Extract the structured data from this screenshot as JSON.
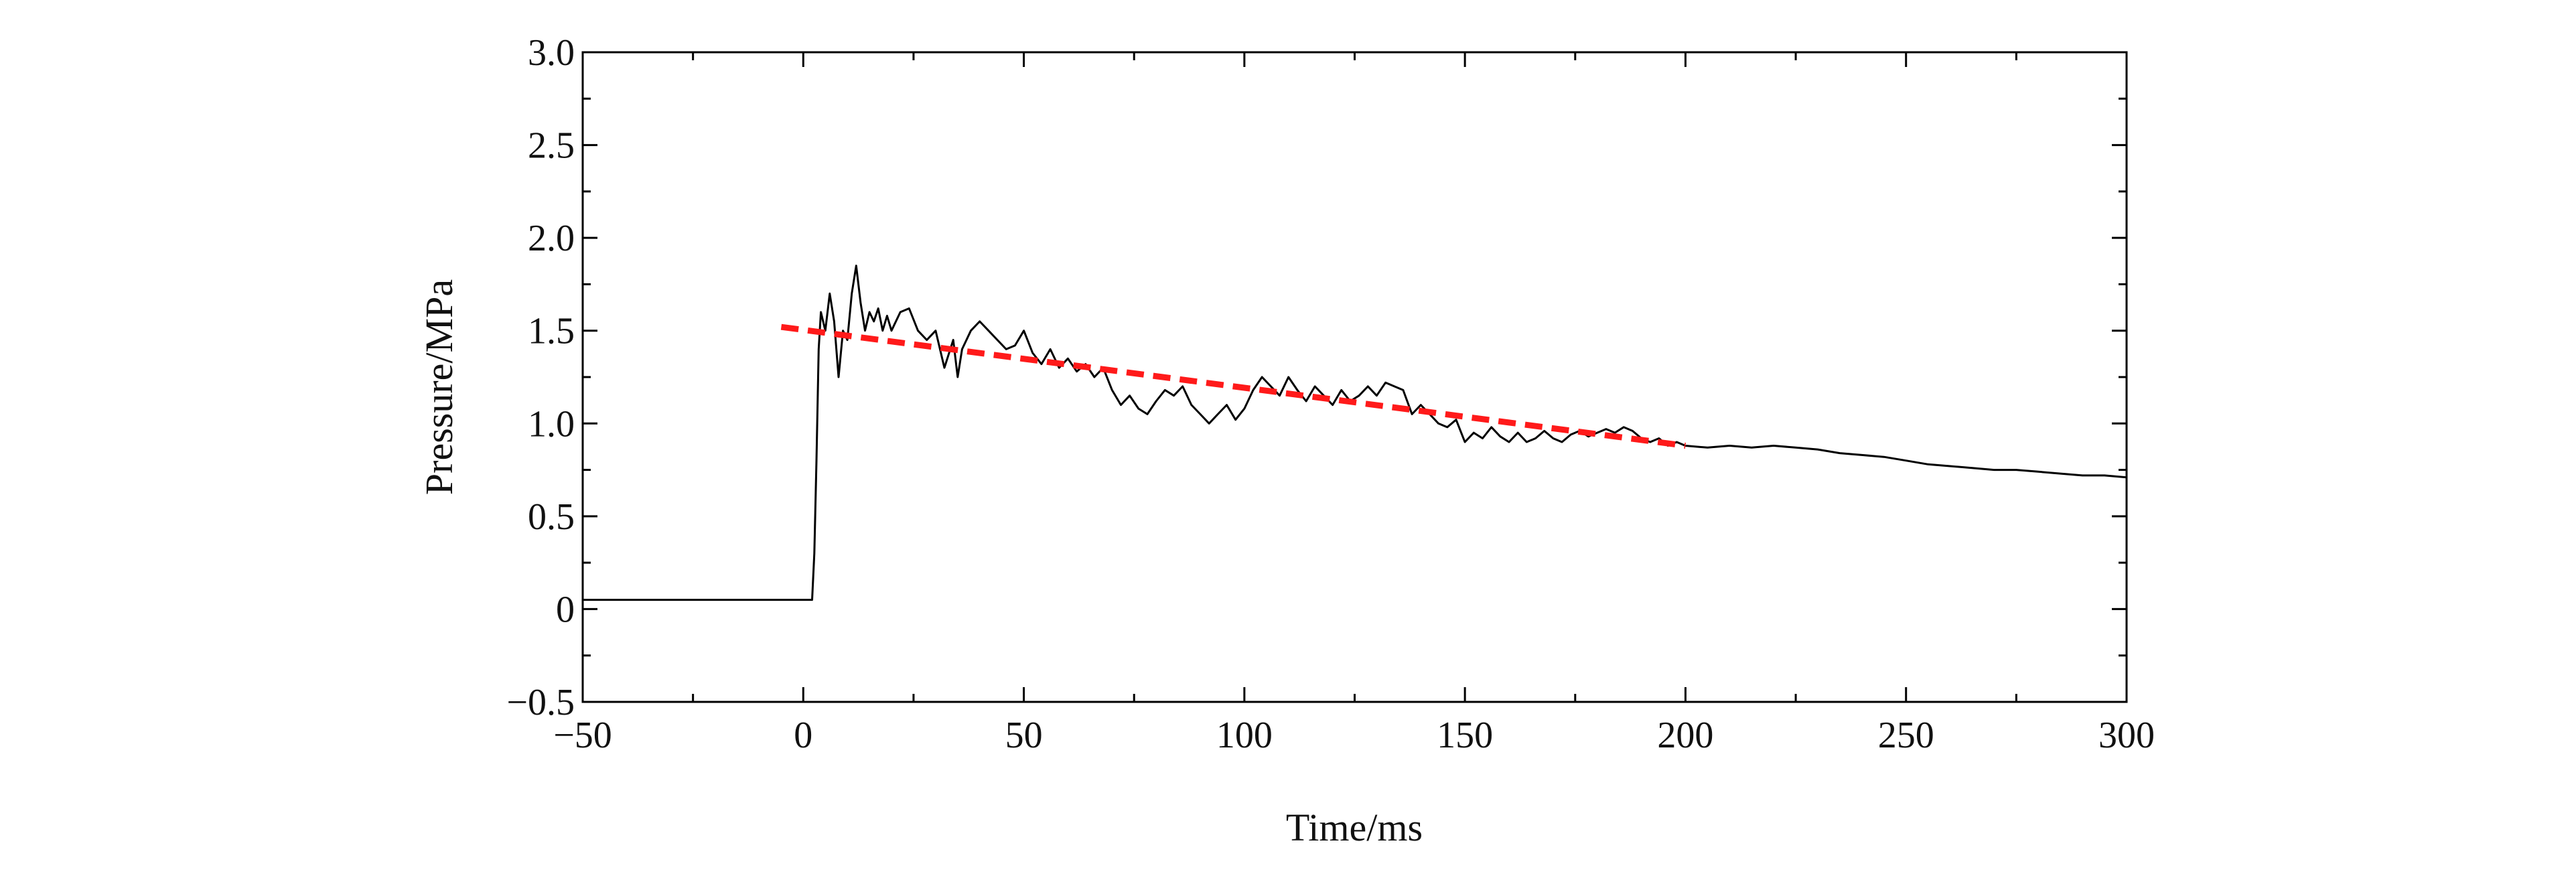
{
  "chart_data": {
    "type": "line",
    "title": "",
    "xlabel": "Time/ms",
    "ylabel": "Pressure/MPa",
    "xlim": [
      -50,
      300
    ],
    "ylim": [
      -0.5,
      3.0
    ],
    "x_ticks": [
      -50,
      0,
      50,
      100,
      150,
      200,
      250,
      300
    ],
    "x_tick_labels": [
      "−50",
      "0",
      "50",
      "100",
      "150",
      "200",
      "250",
      "300"
    ],
    "y_ticks": [
      -0.5,
      0,
      0.5,
      1.0,
      1.5,
      2.0,
      2.5,
      3.0
    ],
    "y_tick_labels": [
      "−0.5",
      "0",
      "0.5",
      "1.0",
      "1.5",
      "2.0",
      "2.5",
      "3.0"
    ],
    "grid": false,
    "legend": "none",
    "series": [
      {
        "style": "solid",
        "color": "#000000",
        "x": [
          -50,
          -40,
          -30,
          -20,
          -10,
          0,
          2,
          2.5,
          3,
          3.5,
          4,
          5,
          6,
          7,
          8,
          9,
          10,
          11,
          12,
          13,
          14,
          15,
          16,
          17,
          18,
          19,
          20,
          22,
          24,
          26,
          28,
          30,
          32,
          34,
          35,
          36,
          38,
          40,
          42,
          44,
          46,
          48,
          50,
          52,
          54,
          56,
          58,
          60,
          62,
          64,
          66,
          68,
          70,
          72,
          74,
          76,
          78,
          80,
          82,
          84,
          86,
          88,
          90,
          92,
          94,
          96,
          98,
          100,
          102,
          104,
          106,
          108,
          110,
          112,
          114,
          116,
          118,
          120,
          122,
          124,
          126,
          128,
          130,
          132,
          134,
          136,
          138,
          140,
          142,
          144,
          146,
          148,
          150,
          152,
          154,
          156,
          158,
          160,
          162,
          164,
          166,
          168,
          170,
          172,
          174,
          176,
          178,
          180,
          182,
          184,
          186,
          188,
          190,
          192,
          194,
          196,
          198,
          200,
          205,
          210,
          215,
          220,
          225,
          230,
          235,
          240,
          245,
          250,
          255,
          260,
          265,
          270,
          275,
          280,
          285,
          290,
          295,
          300
        ],
        "y": [
          0.05,
          0.05,
          0.05,
          0.05,
          0.05,
          0.05,
          0.05,
          0.3,
          0.8,
          1.4,
          1.6,
          1.5,
          1.7,
          1.55,
          1.25,
          1.5,
          1.45,
          1.7,
          1.85,
          1.65,
          1.5,
          1.6,
          1.55,
          1.62,
          1.5,
          1.58,
          1.5,
          1.6,
          1.62,
          1.5,
          1.45,
          1.5,
          1.3,
          1.45,
          1.25,
          1.4,
          1.5,
          1.55,
          1.5,
          1.45,
          1.4,
          1.42,
          1.5,
          1.38,
          1.32,
          1.4,
          1.3,
          1.35,
          1.28,
          1.32,
          1.25,
          1.3,
          1.18,
          1.1,
          1.15,
          1.08,
          1.05,
          1.12,
          1.18,
          1.15,
          1.2,
          1.1,
          1.05,
          1.0,
          1.05,
          1.1,
          1.02,
          1.08,
          1.18,
          1.25,
          1.2,
          1.15,
          1.25,
          1.18,
          1.12,
          1.2,
          1.15,
          1.1,
          1.18,
          1.12,
          1.15,
          1.2,
          1.15,
          1.22,
          1.2,
          1.18,
          1.05,
          1.1,
          1.05,
          1.0,
          0.98,
          1.02,
          0.9,
          0.95,
          0.92,
          0.98,
          0.93,
          0.9,
          0.95,
          0.9,
          0.92,
          0.96,
          0.92,
          0.9,
          0.94,
          0.96,
          0.93,
          0.95,
          0.97,
          0.95,
          0.98,
          0.96,
          0.92,
          0.9,
          0.92,
          0.88,
          0.9,
          0.88,
          0.87,
          0.88,
          0.87,
          0.88,
          0.87,
          0.86,
          0.84,
          0.83,
          0.82,
          0.8,
          0.78,
          0.77,
          0.76,
          0.75,
          0.75,
          0.74,
          0.73,
          0.72,
          0.72,
          0.71
        ]
      },
      {
        "style": "dashed",
        "color": "#ff1a1a",
        "x": [
          -5,
          200
        ],
        "y": [
          1.52,
          0.88
        ]
      }
    ]
  }
}
